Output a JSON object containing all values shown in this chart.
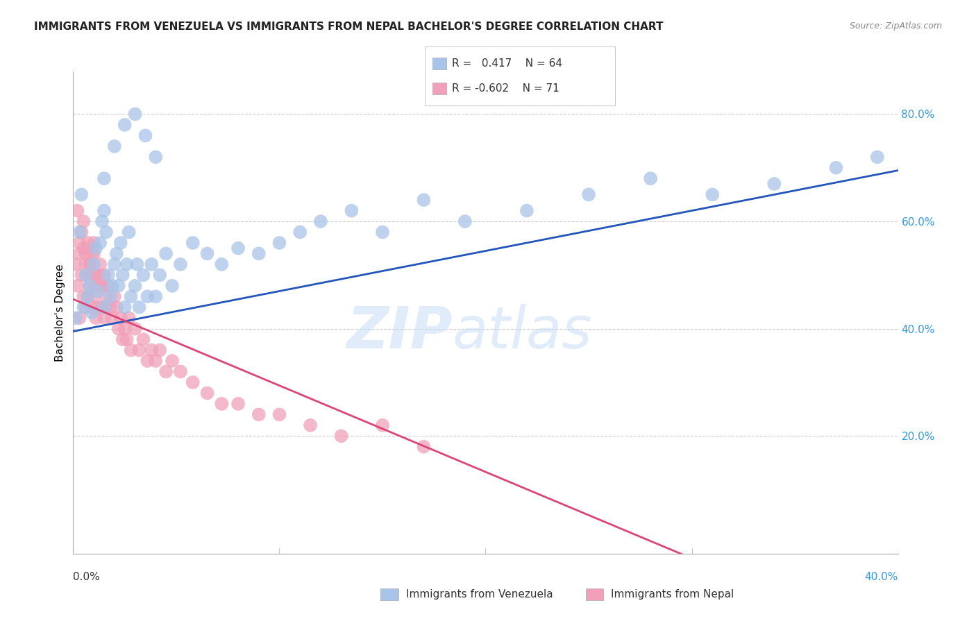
{
  "title": "IMMIGRANTS FROM VENEZUELA VS IMMIGRANTS FROM NEPAL BACHELOR'S DEGREE CORRELATION CHART",
  "source": "Source: ZipAtlas.com",
  "ylabel": "Bachelor's Degree",
  "right_yticks": [
    0.2,
    0.4,
    0.6,
    0.8
  ],
  "right_yticklabels": [
    "20.0%",
    "40.0%",
    "60.0%",
    "80.0%"
  ],
  "xlim": [
    0.0,
    0.4
  ],
  "ylim": [
    -0.02,
    0.88
  ],
  "watermark_zip": "ZIP",
  "watermark_atlas": "atlas",
  "blue_color": "#a8c4e8",
  "pink_color": "#f0a0b8",
  "blue_line_color": "#2255bb",
  "pink_line_color": "#dd4477",
  "grid_color": "#cccccc",
  "venezuela_x": [
    0.001,
    0.003,
    0.004,
    0.005,
    0.006,
    0.007,
    0.008,
    0.009,
    0.01,
    0.011,
    0.012,
    0.013,
    0.014,
    0.015,
    0.015,
    0.016,
    0.017,
    0.018,
    0.019,
    0.02,
    0.021,
    0.022,
    0.023,
    0.024,
    0.025,
    0.026,
    0.027,
    0.028,
    0.03,
    0.031,
    0.032,
    0.034,
    0.036,
    0.038,
    0.04,
    0.042,
    0.045,
    0.048,
    0.052,
    0.058,
    0.065,
    0.072,
    0.08,
    0.09,
    0.1,
    0.11,
    0.12,
    0.135,
    0.15,
    0.17,
    0.19,
    0.22,
    0.25,
    0.28,
    0.31,
    0.34,
    0.37,
    0.39,
    0.015,
    0.02,
    0.025,
    0.03,
    0.035,
    0.04
  ],
  "venezuela_y": [
    0.42,
    0.58,
    0.65,
    0.44,
    0.5,
    0.46,
    0.48,
    0.43,
    0.52,
    0.55,
    0.47,
    0.56,
    0.6,
    0.44,
    0.62,
    0.58,
    0.5,
    0.46,
    0.48,
    0.52,
    0.54,
    0.48,
    0.56,
    0.5,
    0.44,
    0.52,
    0.58,
    0.46,
    0.48,
    0.52,
    0.44,
    0.5,
    0.46,
    0.52,
    0.46,
    0.5,
    0.54,
    0.48,
    0.52,
    0.56,
    0.54,
    0.52,
    0.55,
    0.54,
    0.56,
    0.58,
    0.6,
    0.62,
    0.58,
    0.64,
    0.6,
    0.62,
    0.65,
    0.68,
    0.65,
    0.67,
    0.7,
    0.72,
    0.68,
    0.74,
    0.78,
    0.8,
    0.76,
    0.72
  ],
  "nepal_x": [
    0.001,
    0.002,
    0.003,
    0.003,
    0.004,
    0.005,
    0.005,
    0.006,
    0.006,
    0.007,
    0.007,
    0.008,
    0.008,
    0.009,
    0.009,
    0.01,
    0.01,
    0.011,
    0.011,
    0.012,
    0.012,
    0.013,
    0.013,
    0.014,
    0.014,
    0.015,
    0.015,
    0.016,
    0.016,
    0.017,
    0.018,
    0.019,
    0.02,
    0.021,
    0.022,
    0.023,
    0.024,
    0.025,
    0.026,
    0.027,
    0.028,
    0.03,
    0.032,
    0.034,
    0.036,
    0.038,
    0.04,
    0.042,
    0.045,
    0.048,
    0.052,
    0.058,
    0.065,
    0.072,
    0.08,
    0.09,
    0.1,
    0.115,
    0.13,
    0.15,
    0.002,
    0.003,
    0.004,
    0.005,
    0.006,
    0.007,
    0.008,
    0.009,
    0.01,
    0.011,
    0.17
  ],
  "nepal_y": [
    0.52,
    0.48,
    0.54,
    0.42,
    0.5,
    0.55,
    0.46,
    0.52,
    0.44,
    0.5,
    0.46,
    0.48,
    0.52,
    0.44,
    0.5,
    0.46,
    0.54,
    0.48,
    0.42,
    0.5,
    0.44,
    0.48,
    0.52,
    0.44,
    0.48,
    0.42,
    0.5,
    0.46,
    0.44,
    0.48,
    0.44,
    0.42,
    0.46,
    0.44,
    0.4,
    0.42,
    0.38,
    0.4,
    0.38,
    0.42,
    0.36,
    0.4,
    0.36,
    0.38,
    0.34,
    0.36,
    0.34,
    0.36,
    0.32,
    0.34,
    0.32,
    0.3,
    0.28,
    0.26,
    0.26,
    0.24,
    0.24,
    0.22,
    0.2,
    0.22,
    0.62,
    0.56,
    0.58,
    0.6,
    0.54,
    0.56,
    0.52,
    0.54,
    0.56,
    0.5,
    0.18
  ],
  "blue_line_x": [
    0.0,
    0.4
  ],
  "blue_line_y": [
    0.395,
    0.695
  ],
  "pink_line_x": [
    0.0,
    0.295
  ],
  "pink_line_y": [
    0.455,
    -0.02
  ]
}
